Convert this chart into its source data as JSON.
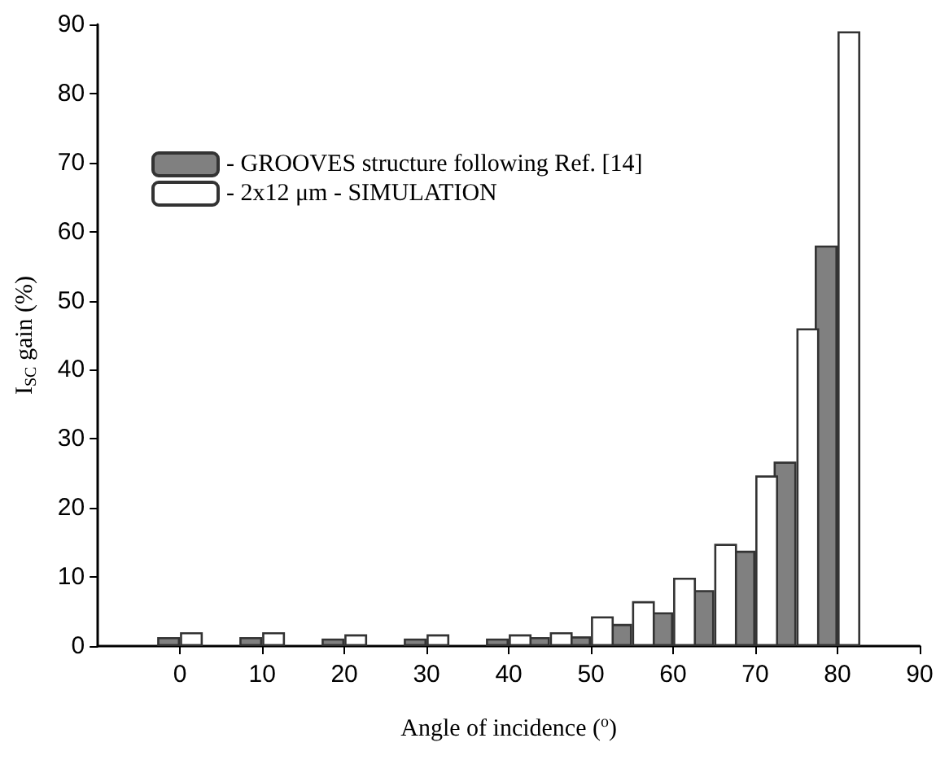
{
  "chart_data": {
    "type": "bar",
    "x": [
      0,
      10,
      20,
      30,
      40,
      45,
      50,
      55,
      60,
      65,
      70,
      75,
      80
    ],
    "series": [
      {
        "name": "- GROOVES structure following Ref. [14]",
        "color": "#808080",
        "values": [
          1.3,
          1.3,
          1.1,
          1.1,
          1.1,
          1.3,
          1.4,
          3.2,
          4.9,
          8.1,
          13.8,
          26.7,
          58
        ]
      },
      {
        "name": "- 2x12 μm - SIMULATION",
        "color": "#ffffff",
        "values": [
          2,
          2,
          1.7,
          1.7,
          1.7,
          2,
          4.3,
          6.5,
          9.9,
          14.8,
          24.7,
          46,
          89
        ]
      }
    ],
    "xlabel": "Angle of incidence ($^{o}$)",
    "ylabel": "I$_{SC}$ gain (%)",
    "xlim": [
      -10,
      90
    ],
    "xticks": [
      0,
      10,
      20,
      30,
      40,
      50,
      60,
      70,
      80,
      90
    ],
    "ylim": [
      0,
      90
    ],
    "yticks": [
      0,
      10,
      20,
      30,
      40,
      50,
      60,
      70,
      80,
      90
    ],
    "grid": false,
    "legend": "top left"
  }
}
